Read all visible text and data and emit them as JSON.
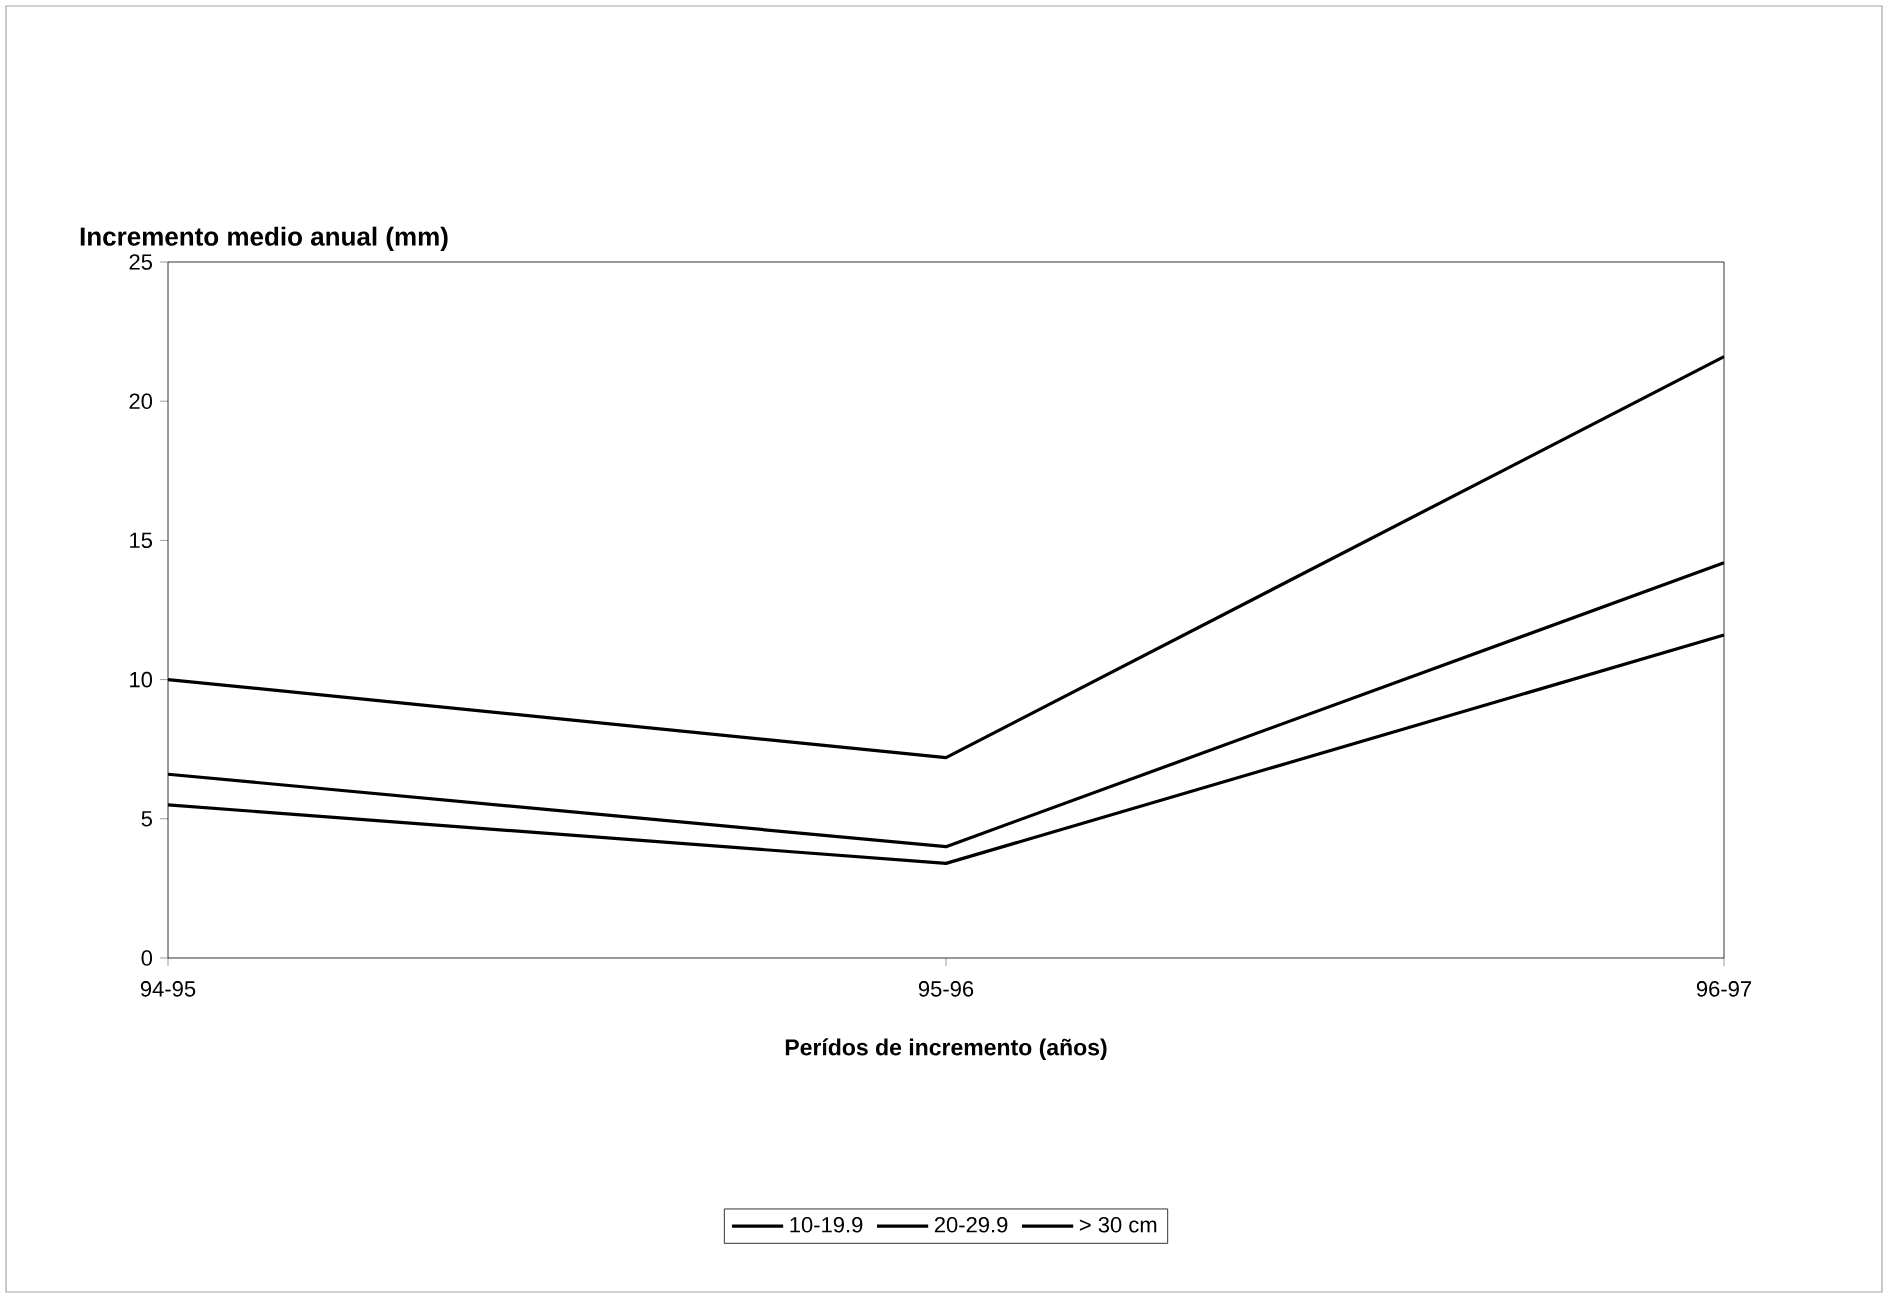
{
  "chart_data": {
    "type": "line",
    "ylabel": "Incremento medio anual (mm)",
    "xlabel": "Perídos de incremento (años)",
    "categories": [
      "94-95",
      "95-96",
      "96-97"
    ],
    "series": [
      {
        "name": "10-19.9",
        "color": "#000000",
        "values": [
          5.5,
          3.4,
          11.6
        ]
      },
      {
        "name": "20-29.9",
        "color": "#000000",
        "values": [
          6.6,
          4.0,
          14.2
        ]
      },
      {
        "name": "> 30 cm",
        "color": "#000000",
        "values": [
          10.0,
          7.2,
          21.6
        ]
      }
    ],
    "ylim": [
      0,
      25
    ],
    "yticks": [
      0,
      5,
      10,
      15,
      20,
      25
    ],
    "grid": false,
    "legend": "bottom"
  }
}
